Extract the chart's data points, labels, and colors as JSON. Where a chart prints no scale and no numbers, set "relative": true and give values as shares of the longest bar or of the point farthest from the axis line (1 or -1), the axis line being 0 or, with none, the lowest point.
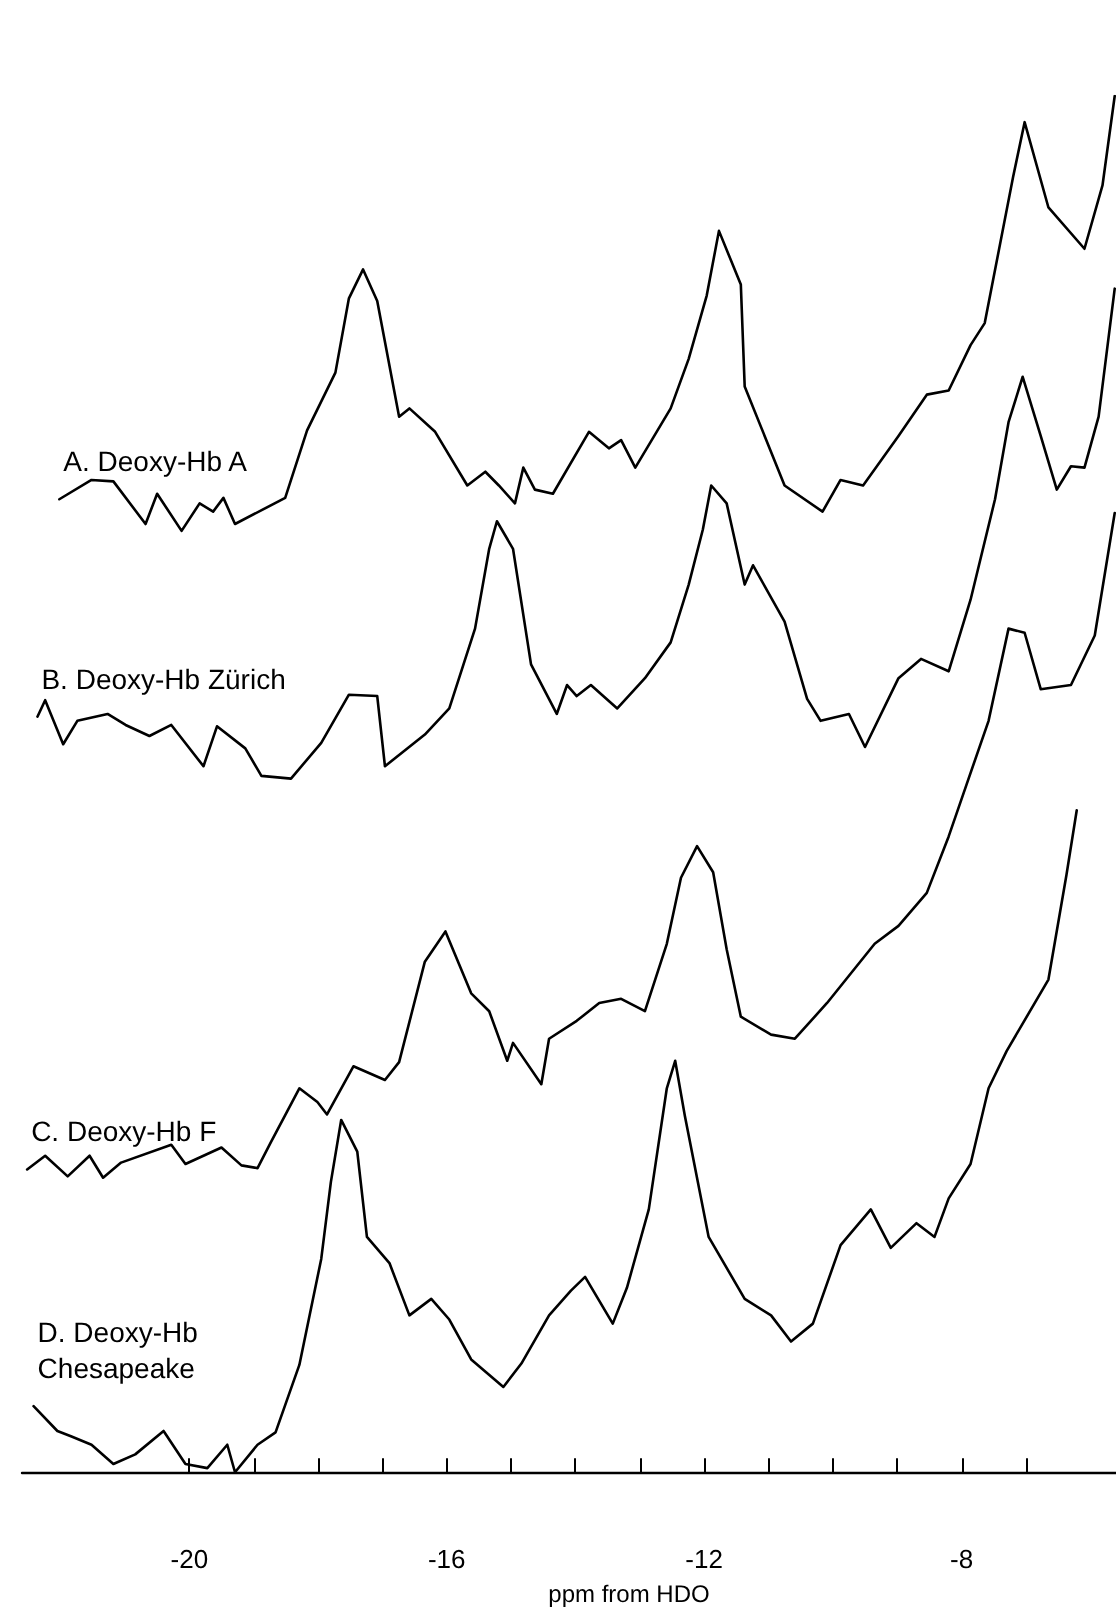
{
  "chart_data": {
    "type": "line",
    "relative": true,
    "xlabel": "ppm from HDO",
    "xlim": [
      -22.6,
      -5.6
    ],
    "xticks": [
      {
        "value": -20,
        "label": "-20"
      },
      {
        "value": -19,
        "label": null
      },
      {
        "value": -18,
        "label": null
      },
      {
        "value": -17,
        "label": null
      },
      {
        "value": -16,
        "label": "-16"
      },
      {
        "value": -15,
        "label": null
      },
      {
        "value": -14,
        "label": null
      },
      {
        "value": -13,
        "label": null
      },
      {
        "value": -12,
        "label": "-12"
      },
      {
        "value": -11,
        "label": null
      },
      {
        "value": -10,
        "label": null
      },
      {
        "value": -9,
        "label": null
      },
      {
        "value": -8,
        "label": "-8"
      },
      {
        "value": -7,
        "label": null
      }
    ],
    "grid": false,
    "legend": false,
    "series": [
      {
        "name": "A. Deoxy-Hb A",
        "color": "#000000",
        "x": [
          -22.02,
          -21.52,
          -21.18,
          -20.68,
          -20.5,
          -20.12,
          -19.84,
          -19.63,
          -19.47,
          -19.29,
          -18.51,
          -18.17,
          -17.73,
          -17.52,
          -17.3,
          -17.08,
          -16.74,
          -16.58,
          -16.18,
          -15.68,
          -15.4,
          -15.19,
          -14.94,
          -14.81,
          -14.63,
          -14.35,
          -13.79,
          -13.48,
          -13.29,
          -13.07,
          -12.52,
          -12.24,
          -11.96,
          -11.77,
          -11.43,
          -11.37,
          -10.75,
          -10.16,
          -9.88,
          -9.53,
          -8.98,
          -8.54,
          -8.2,
          -7.86,
          -7.64,
          -7.2,
          -7.02,
          -6.65,
          -6.09,
          -5.81,
          -5.62
        ],
        "values": [
          0.707,
          0.721,
          0.72,
          0.689,
          0.711,
          0.684,
          0.704,
          0.698,
          0.708,
          0.689,
          0.708,
          0.757,
          0.799,
          0.853,
          0.874,
          0.851,
          0.767,
          0.773,
          0.756,
          0.717,
          0.727,
          0.717,
          0.704,
          0.73,
          0.714,
          0.711,
          0.756,
          0.744,
          0.75,
          0.73,
          0.773,
          0.809,
          0.855,
          0.902,
          0.863,
          0.789,
          0.717,
          0.698,
          0.721,
          0.717,
          0.753,
          0.783,
          0.786,
          0.819,
          0.835,
          0.941,
          0.981,
          0.919,
          0.889,
          0.935,
          1.0
        ]
      },
      {
        "name": "B. Deoxy-Hb Zürich",
        "color": "#000000",
        "x": [
          -22.36,
          -22.24,
          -21.96,
          -21.74,
          -21.27,
          -20.99,
          -20.62,
          -20.28,
          -19.78,
          -19.57,
          -19.13,
          -18.88,
          -18.42,
          -17.95,
          -17.52,
          -17.08,
          -16.96,
          -16.34,
          -15.96,
          -15.56,
          -15.34,
          -15.22,
          -14.97,
          -14.69,
          -14.29,
          -14.13,
          -13.98,
          -13.76,
          -13.35,
          -12.92,
          -12.52,
          -12.24,
          -12.02,
          -11.89,
          -11.65,
          -11.37,
          -11.24,
          -10.75,
          -10.4,
          -10.19,
          -9.75,
          -9.5,
          -8.98,
          -8.63,
          -8.2,
          -7.86,
          -7.48,
          -7.27,
          -7.05,
          -6.77,
          -6.52,
          -6.3,
          -6.09,
          -5.87,
          -5.62
        ],
        "values": [
          0.549,
          0.561,
          0.529,
          0.546,
          0.551,
          0.543,
          0.535,
          0.543,
          0.513,
          0.542,
          0.526,
          0.506,
          0.504,
          0.53,
          0.565,
          0.564,
          0.513,
          0.536,
          0.555,
          0.613,
          0.671,
          0.691,
          0.671,
          0.587,
          0.551,
          0.572,
          0.564,
          0.572,
          0.555,
          0.577,
          0.603,
          0.645,
          0.685,
          0.717,
          0.704,
          0.645,
          0.659,
          0.618,
          0.562,
          0.546,
          0.551,
          0.527,
          0.577,
          0.591,
          0.582,
          0.634,
          0.707,
          0.763,
          0.796,
          0.753,
          0.714,
          0.731,
          0.73,
          0.767,
          0.86
        ]
      },
      {
        "name": "C. Deoxy-Hb F",
        "color": "#000000",
        "x": [
          -22.52,
          -22.24,
          -21.89,
          -21.55,
          -21.34,
          -21.06,
          -20.28,
          -20.06,
          -19.5,
          -19.19,
          -18.94,
          -18.73,
          -18.29,
          -18.01,
          -17.86,
          -17.45,
          -16.96,
          -16.74,
          -16.34,
          -16.02,
          -15.62,
          -15.34,
          -15.06,
          -14.97,
          -14.53,
          -14.41,
          -13.98,
          -13.63,
          -13.29,
          -12.92,
          -12.58,
          -12.36,
          -12.11,
          -11.86,
          -11.65,
          -11.43,
          -10.96,
          -10.59,
          -10.09,
          -9.35,
          -8.98,
          -8.54,
          -8.2,
          -7.92,
          -7.58,
          -7.27,
          -7.02,
          -6.77,
          -6.3,
          -5.93,
          -5.62
        ],
        "values": [
          0.22,
          0.23,
          0.215,
          0.23,
          0.214,
          0.225,
          0.238,
          0.224,
          0.236,
          0.223,
          0.221,
          0.24,
          0.279,
          0.269,
          0.26,
          0.295,
          0.285,
          0.298,
          0.371,
          0.393,
          0.348,
          0.335,
          0.299,
          0.312,
          0.282,
          0.315,
          0.328,
          0.341,
          0.344,
          0.335,
          0.384,
          0.432,
          0.455,
          0.436,
          0.38,
          0.331,
          0.318,
          0.315,
          0.341,
          0.384,
          0.397,
          0.421,
          0.462,
          0.5,
          0.546,
          0.613,
          0.61,
          0.569,
          0.572,
          0.608,
          0.697
        ]
      },
      {
        "name": "D. Deoxy-Hb Chesapeake",
        "color": "#000000",
        "x": [
          -22.42,
          -22.05,
          -21.83,
          -21.52,
          -21.18,
          -20.84,
          -20.4,
          -20.06,
          -19.72,
          -19.41,
          -19.29,
          -18.94,
          -18.66,
          -18.29,
          -17.95,
          -17.8,
          -17.64,
          -17.39,
          -17.24,
          -16.89,
          -16.58,
          -16.24,
          -15.96,
          -15.62,
          -15.12,
          -14.84,
          -14.41,
          -14.07,
          -13.85,
          -13.42,
          -13.2,
          -12.86,
          -12.58,
          -12.45,
          -12.3,
          -11.93,
          -11.37,
          -10.96,
          -10.65,
          -10.31,
          -9.88,
          -9.41,
          -9.1,
          -8.7,
          -8.42,
          -8.2,
          -7.86,
          -7.58,
          -7.3,
          -6.65,
          -6.37,
          -6.21
        ],
        "values": [
          0.048,
          0.03,
          0.026,
          0.02,
          0.006,
          0.013,
          0.03,
          0.006,
          0.003,
          0.02,
          0.0,
          0.02,
          0.029,
          0.078,
          0.155,
          0.211,
          0.256,
          0.233,
          0.171,
          0.152,
          0.114,
          0.126,
          0.111,
          0.082,
          0.062,
          0.079,
          0.114,
          0.132,
          0.142,
          0.108,
          0.134,
          0.191,
          0.279,
          0.299,
          0.259,
          0.171,
          0.126,
          0.114,
          0.095,
          0.108,
          0.165,
          0.191,
          0.163,
          0.181,
          0.171,
          0.199,
          0.224,
          0.279,
          0.306,
          0.358,
          0.434,
          0.481
        ]
      }
    ]
  }
}
